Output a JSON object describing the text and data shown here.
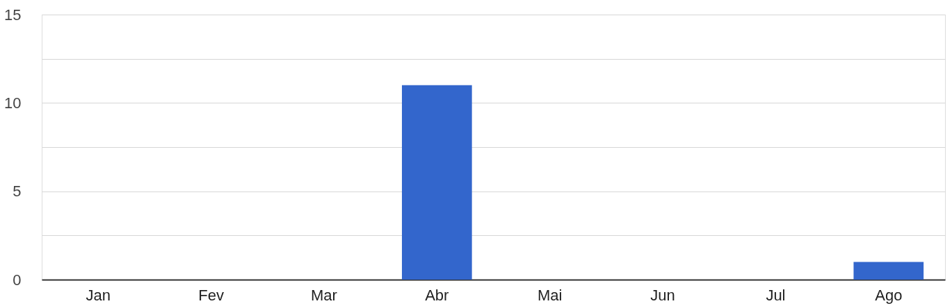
{
  "chart_data": {
    "type": "bar",
    "categories": [
      "Jan",
      "Fev",
      "Mar",
      "Abr",
      "Mai",
      "Jun",
      "Jul",
      "Ago"
    ],
    "values": [
      0,
      0,
      0,
      11,
      0,
      0,
      0,
      1
    ],
    "color": "#3366cc",
    "ylim": [
      0,
      15
    ],
    "yticks": [
      0,
      {
        "value": 2.5,
        "label": null
      },
      5,
      {
        "value": 7.5,
        "label": null
      },
      10,
      {
        "value": 12.5,
        "label": null
      },
      15
    ],
    "grid": "y"
  }
}
